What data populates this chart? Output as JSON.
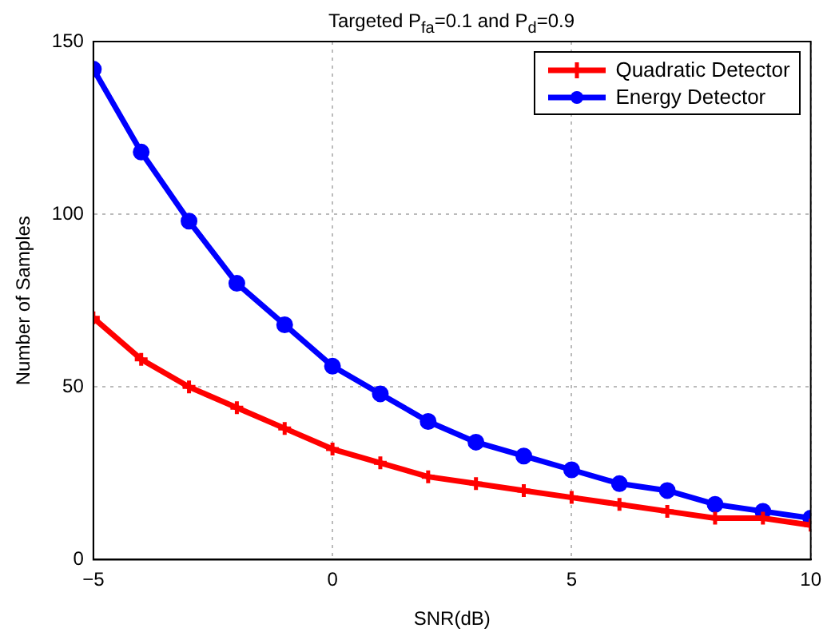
{
  "chart_data": {
    "type": "line",
    "title": "Targeted P$_{fa}$=0.1 and P$_{d}$=0.9",
    "xlabel": "SNR(dB)",
    "ylabel": "Number of Samples",
    "x": [
      -5,
      -4,
      -3,
      -2,
      -1,
      0,
      1,
      2,
      3,
      4,
      5,
      6,
      7,
      8,
      9,
      10
    ],
    "series": [
      {
        "name": "Quadratic Detector",
        "color": "#ff0000",
        "marker": "cross",
        "values": [
          70,
          58,
          50,
          44,
          38,
          32,
          28,
          24,
          22,
          20,
          18,
          16,
          14,
          12,
          12,
          10
        ]
      },
      {
        "name": "Energy Detector",
        "color": "#0000ff",
        "marker": "circle",
        "values": [
          142,
          118,
          98,
          80,
          68,
          56,
          48,
          40,
          34,
          30,
          26,
          22,
          20,
          16,
          14,
          12
        ]
      }
    ],
    "xlim": [
      -5,
      10
    ],
    "xticks": [
      -5,
      0,
      5,
      10
    ],
    "ylim": [
      0,
      150
    ],
    "yticks": [
      0,
      50,
      100,
      150
    ],
    "grid": true,
    "legend": "top right",
    "line_style": "solid"
  }
}
